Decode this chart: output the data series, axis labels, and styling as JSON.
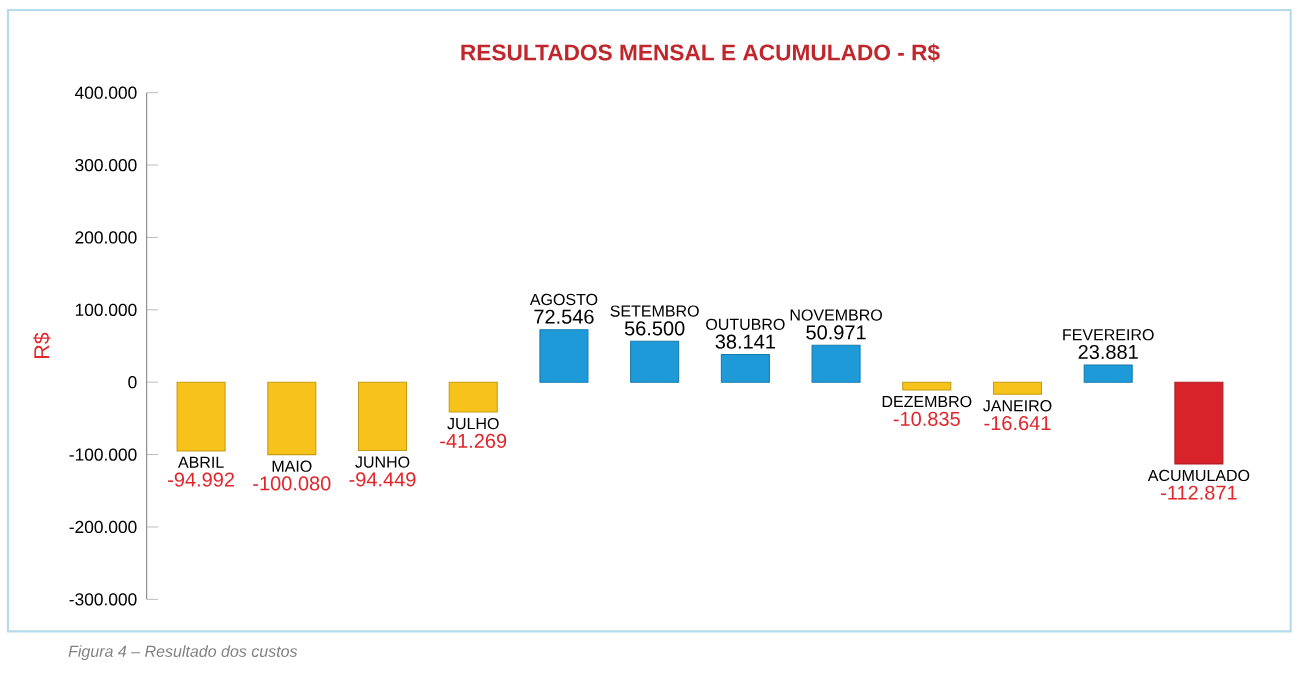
{
  "chart_data": {
    "type": "bar",
    "title": "RESULTADOS MENSAL E ACUMULADO - R$",
    "ylabel": "R$",
    "categories": [
      "ABRIL",
      "MAIO",
      "JUNHO",
      "JULHO",
      "AGOSTO",
      "SETEMBRO",
      "OUTUBRO",
      "NOVEMBRO",
      "DEZEMBRO",
      "JANEIRO",
      "FEVEREIRO",
      "ACUMULADO"
    ],
    "values": [
      -94992,
      -100080,
      -94449,
      -41269,
      72546,
      56500,
      38141,
      50971,
      -10835,
      -16641,
      23881,
      -112871
    ],
    "value_labels": [
      "-94.992",
      "-100.080",
      "-94.449",
      "-41.269",
      "72.546",
      "56.500",
      "38.141",
      "50.971",
      "-10.835",
      "-16.641",
      "23.881",
      "-112.871"
    ],
    "colors": [
      "#f7c21a",
      "#f7c21a",
      "#f7c21a",
      "#f7c21a",
      "#1f9ad8",
      "#1f9ad8",
      "#1f9ad8",
      "#1f9ad8",
      "#f7c21a",
      "#f7c21a",
      "#1f9ad8",
      "#d9232a"
    ],
    "ylim": [
      -300000,
      400000
    ],
    "yticks": [
      {
        "value": -300000,
        "label": "-300.000"
      },
      {
        "value": -200000,
        "label": "-200.000"
      },
      {
        "value": -100000,
        "label": "-100.000"
      },
      {
        "value": 0,
        "label": "0"
      },
      {
        "value": 100000,
        "label": "100.000"
      },
      {
        "value": 200000,
        "label": "200.000"
      },
      {
        "value": 300000,
        "label": "300.000"
      },
      {
        "value": 400000,
        "label": "400.000"
      }
    ],
    "grid": false,
    "annotations": [
      "Figura 4 – Resultado dos custos"
    ]
  }
}
